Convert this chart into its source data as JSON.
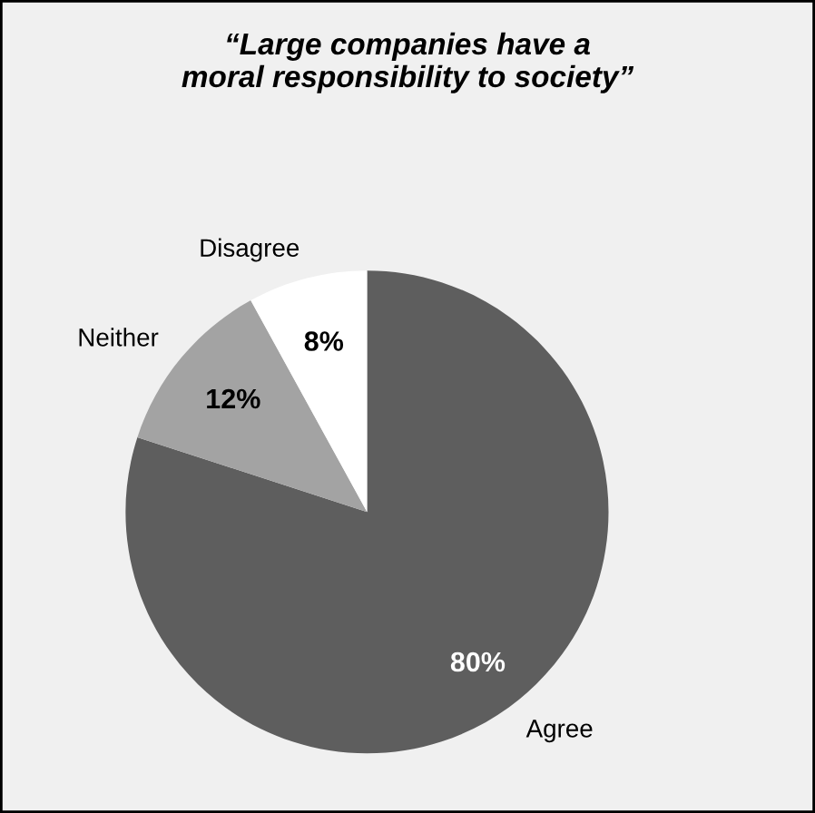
{
  "chart_data": {
    "type": "pie",
    "title": "“Large companies have a\nmoral responsibility to society”",
    "categories": [
      "Agree",
      "Neither",
      "Disagree"
    ],
    "values": [
      80,
      12,
      8
    ],
    "value_labels": [
      "80%",
      "12%",
      "8%"
    ],
    "colors": [
      "#5e5e5e",
      "#a3a3a3",
      "#ffffff"
    ],
    "legend": false
  }
}
